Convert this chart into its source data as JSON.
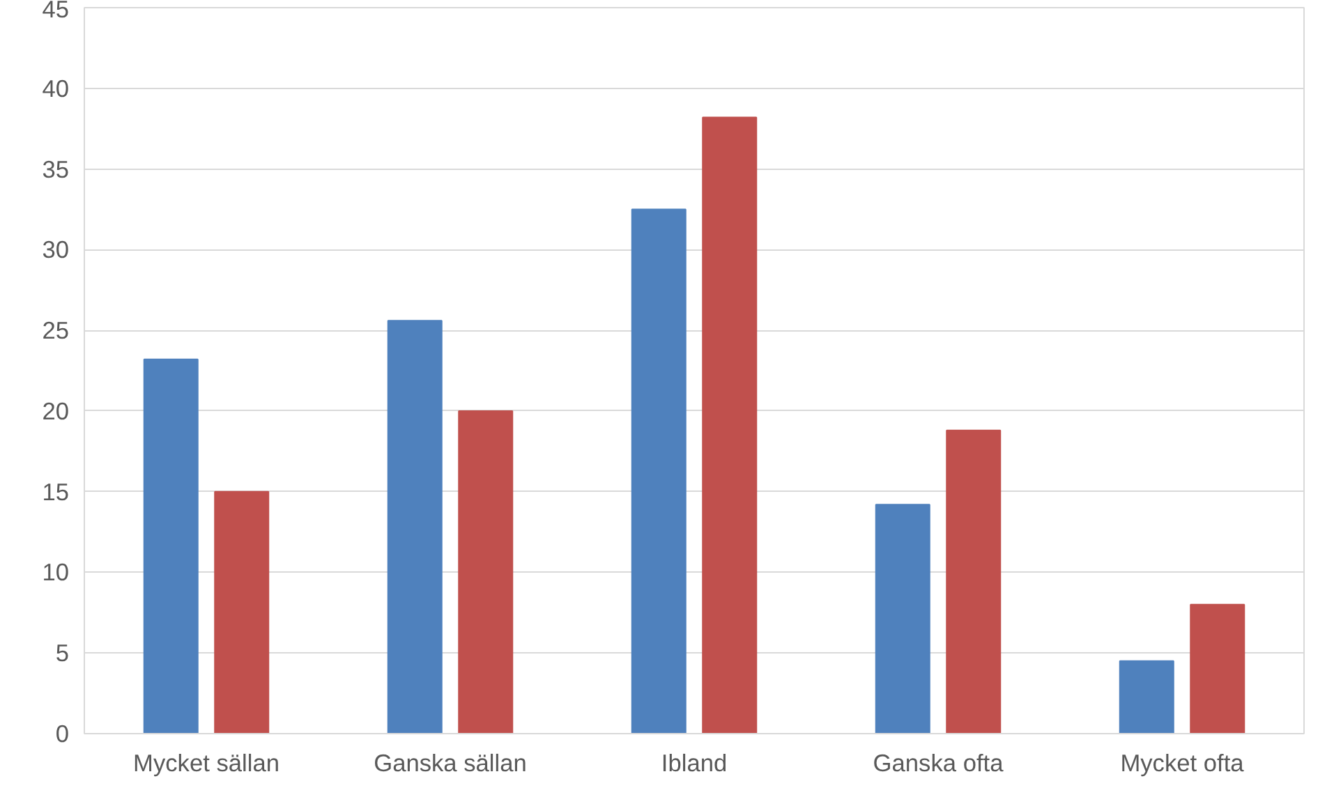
{
  "chart_data": {
    "type": "bar",
    "categories": [
      "Mycket sällan",
      "Ganska sällan",
      "Ibland",
      "Ganska ofta",
      "Mycket ofta"
    ],
    "series": [
      {
        "color": "#4f81bd",
        "values": [
          23.2,
          25.6,
          32.5,
          14.2,
          4.5
        ]
      },
      {
        "color": "#c0504d",
        "values": [
          15.0,
          20.0,
          38.2,
          18.8,
          8.0
        ]
      }
    ],
    "ylim": [
      0,
      45
    ],
    "yticks": [
      0,
      5,
      10,
      15,
      20,
      25,
      30,
      35,
      40,
      45
    ],
    "grid": "y"
  }
}
